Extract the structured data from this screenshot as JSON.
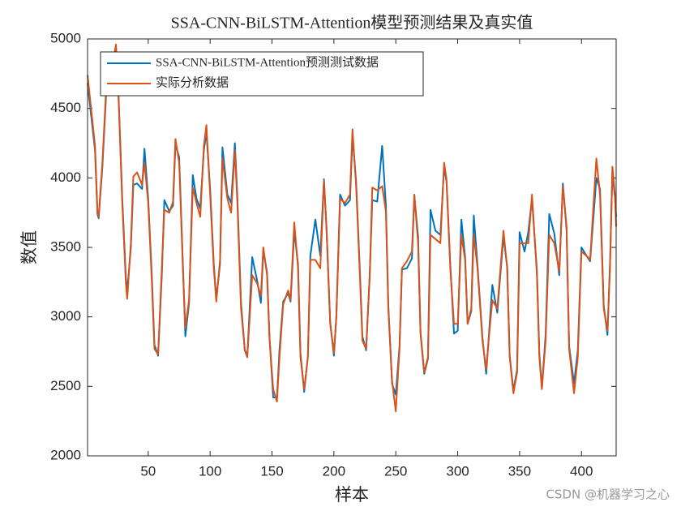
{
  "chart_data": {
    "type": "line",
    "title": "SSA-CNN-BiLSTM-Attention模型预测结果及真实值",
    "x_label": "样本",
    "y_label": "数值",
    "watermark": "CSDN @机器学习之心",
    "legend": "upper left",
    "xlim": [
      1,
      428
    ],
    "xticks": [
      50,
      100,
      150,
      200,
      250,
      300,
      350,
      400
    ],
    "ylim": [
      2000,
      5000
    ],
    "yticks": [
      2000,
      2500,
      3000,
      3500,
      4000,
      4500,
      5000
    ],
    "x": [
      1,
      7,
      9,
      10,
      13,
      16,
      21,
      24,
      26,
      29,
      32,
      33,
      36,
      38,
      41,
      45,
      47,
      50,
      53,
      55,
      58,
      61,
      63,
      67,
      70,
      72,
      75,
      78,
      80,
      83,
      86,
      89,
      92,
      95,
      97,
      100,
      103,
      105,
      108,
      110,
      114,
      117,
      120,
      122,
      125,
      128,
      130,
      134,
      138,
      141,
      143,
      146,
      148,
      151,
      154,
      156,
      159,
      163,
      165,
      168,
      171,
      173,
      176,
      179,
      181,
      185,
      189,
      192,
      194,
      197,
      200,
      202,
      205,
      209,
      213,
      215,
      218,
      221,
      223,
      226,
      229,
      231,
      235,
      239,
      242,
      244,
      247,
      250,
      253,
      255,
      259,
      263,
      265,
      268,
      270,
      273,
      276,
      278,
      282,
      286,
      289,
      291,
      294,
      297,
      300,
      303,
      306,
      308,
      311,
      313,
      316,
      320,
      323,
      325,
      328,
      332,
      337,
      340,
      342,
      345,
      348,
      350,
      354,
      357,
      360,
      364,
      366,
      368,
      371,
      374,
      378,
      382,
      385,
      388,
      390,
      394,
      397,
      400,
      404,
      407,
      412,
      415,
      418,
      421,
      423,
      425,
      427,
      428
    ],
    "series": [
      {
        "name": "SSA-CNN-BiLSTM-Attention预测测试数据",
        "color": "#0072BD",
        "values": [
          4680,
          4200,
          3740,
          3710,
          4080,
          4600,
          4800,
          4900,
          4600,
          3850,
          3280,
          3180,
          3500,
          3950,
          3960,
          3920,
          4210,
          3850,
          3280,
          2800,
          2720,
          3300,
          3840,
          3760,
          3800,
          4240,
          4150,
          3380,
          2860,
          3100,
          4020,
          3850,
          3780,
          4200,
          4330,
          3920,
          3380,
          3130,
          3380,
          4220,
          3880,
          3820,
          4250,
          3860,
          3100,
          2760,
          2710,
          3430,
          3260,
          3100,
          3480,
          3320,
          2850,
          2420,
          2420,
          2760,
          3110,
          3170,
          3110,
          3620,
          3380,
          2740,
          2460,
          2720,
          3440,
          3700,
          3440,
          3990,
          3640,
          2960,
          2720,
          3010,
          3880,
          3800,
          3840,
          4300,
          3970,
          3330,
          2860,
          2760,
          3310,
          3840,
          3830,
          4230,
          3800,
          3080,
          2520,
          2440,
          2790,
          3340,
          3350,
          3420,
          3870,
          3580,
          2880,
          2590,
          2700,
          3770,
          3620,
          3590,
          4080,
          3970,
          3380,
          2880,
          2900,
          3700,
          3430,
          2950,
          3040,
          3730,
          3370,
          2850,
          2590,
          2840,
          3230,
          3030,
          3580,
          3360,
          2720,
          2470,
          2620,
          3610,
          3470,
          3610,
          3850,
          3330,
          2730,
          2490,
          2870,
          3740,
          3600,
          3300,
          3960,
          3620,
          2790,
          2520,
          2760,
          3500,
          3440,
          3400,
          4000,
          3920,
          3080,
          2870,
          3380,
          4040,
          3860,
          3720
        ]
      },
      {
        "name": "实际分析数据",
        "color": "#D95319",
        "values": [
          4740,
          4230,
          3760,
          3720,
          4110,
          4640,
          4810,
          4960,
          4580,
          3820,
          3240,
          3130,
          3530,
          4010,
          4040,
          3950,
          4110,
          3820,
          3240,
          2770,
          2730,
          3350,
          3770,
          3750,
          3830,
          4280,
          4110,
          3350,
          2920,
          3120,
          3930,
          3820,
          3720,
          4230,
          4380,
          3880,
          3350,
          3110,
          3410,
          4140,
          3850,
          3750,
          4200,
          3820,
          3060,
          2770,
          2710,
          3300,
          3240,
          3150,
          3500,
          3300,
          2830,
          2480,
          2390,
          2710,
          3090,
          3190,
          3120,
          3680,
          3350,
          2710,
          2480,
          2710,
          3410,
          3410,
          3350,
          3980,
          3650,
          2950,
          2740,
          3000,
          3850,
          3820,
          3880,
          4350,
          3940,
          3300,
          2830,
          2770,
          3300,
          3930,
          3910,
          3940,
          3760,
          3060,
          2540,
          2320,
          2770,
          3350,
          3400,
          3470,
          3880,
          3530,
          2890,
          2600,
          2710,
          3590,
          3560,
          3530,
          4110,
          3990,
          3350,
          2950,
          2950,
          3590,
          3410,
          2950,
          3060,
          3590,
          3350,
          2830,
          2620,
          2830,
          3120,
          3060,
          3620,
          3350,
          2710,
          2450,
          2600,
          3530,
          3530,
          3530,
          3880,
          3300,
          2710,
          2480,
          2830,
          3590,
          3530,
          3330,
          3940,
          3650,
          2770,
          2450,
          2710,
          3470,
          3440,
          3410,
          4140,
          3880,
          3060,
          2900,
          3350,
          4080,
          3880,
          3650
        ]
      }
    ]
  }
}
